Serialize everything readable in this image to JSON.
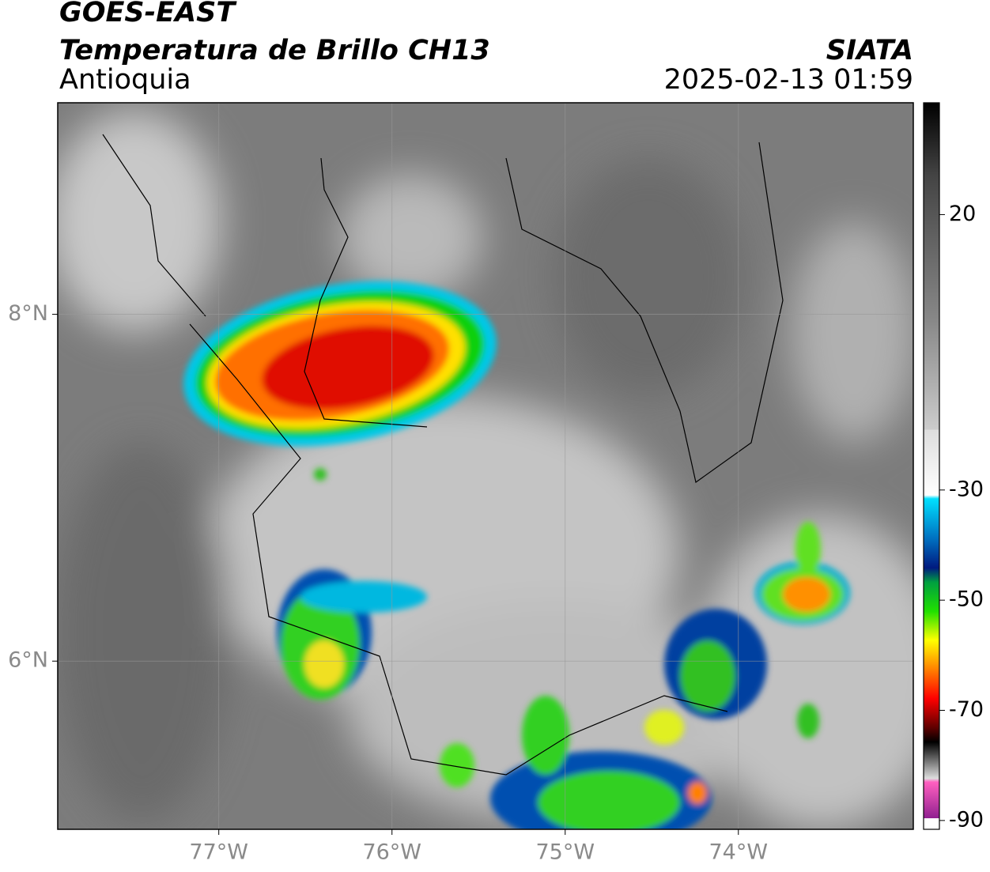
{
  "header": {
    "title": "GOES-EAST",
    "subtitle": "Temperatura de Brillo CH13",
    "region": "Antioquia",
    "source": "SIATA",
    "datetime": "2025-02-13 01:59"
  },
  "map": {
    "xlim": [
      -77.93,
      -72.99
    ],
    "ylim": [
      5.03,
      9.22
    ],
    "xticks": [
      {
        "value": -77,
        "label": "77°W"
      },
      {
        "value": -76,
        "label": "76°W"
      },
      {
        "value": -75,
        "label": "75°W"
      },
      {
        "value": -74,
        "label": "74°W"
      }
    ],
    "yticks": [
      {
        "value": 6,
        "label": "6°N"
      },
      {
        "value": 8,
        "label": "8°N"
      }
    ],
    "grid": true
  },
  "colorbar": {
    "ylim": [
      -91.6,
      40.3
    ],
    "yticks": [
      20,
      -30,
      -50,
      -70,
      -90
    ]
  }
}
